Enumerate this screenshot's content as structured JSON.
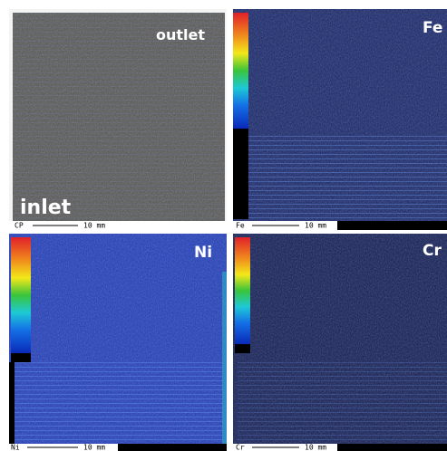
{
  "panels": [
    {
      "labels": [
        "outlet",
        "inlet"
      ],
      "footer": {
        "code": "CP",
        "scale": "10 mm"
      }
    },
    {
      "labels": [
        "Fe"
      ],
      "footer": {
        "code": "Fe",
        "scale": "10 mm"
      }
    },
    {
      "labels": [
        "Ni"
      ],
      "footer": {
        "code": "Ni",
        "scale": "10 mm"
      }
    },
    {
      "labels": [
        "Cr"
      ],
      "footer": {
        "code": "Cr",
        "scale": "10 mm"
      }
    }
  ]
}
